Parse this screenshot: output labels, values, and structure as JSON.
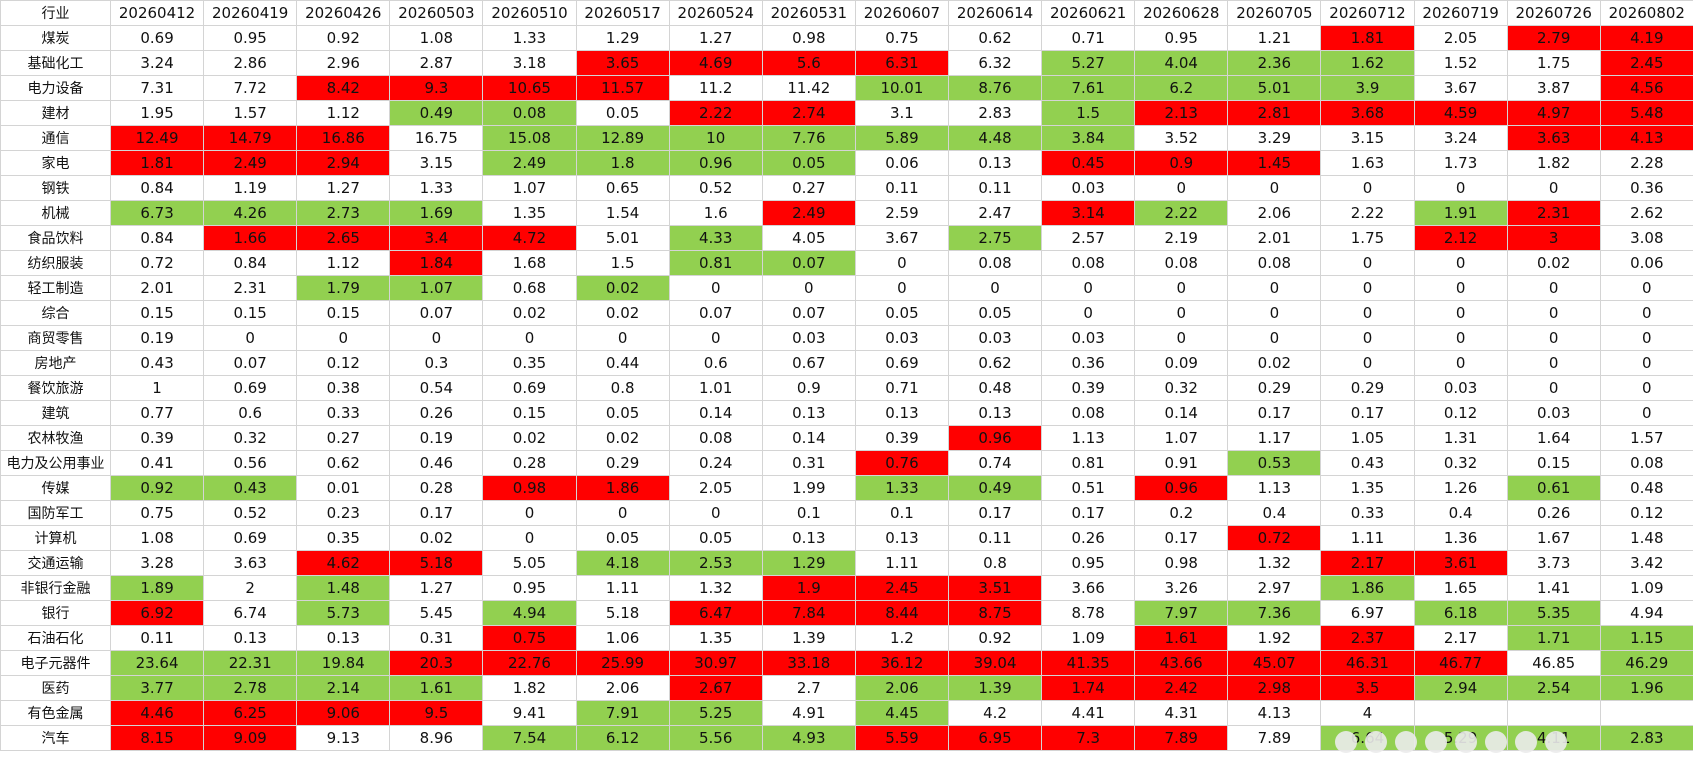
{
  "table": {
    "header_label": "行业",
    "dates": [
      "20260412",
      "20260419",
      "20260426",
      "20260503",
      "20260510",
      "20260517",
      "20260524",
      "20260531",
      "20260607",
      "20260614",
      "20260621",
      "20260628",
      "20260705",
      "20260712",
      "20260719",
      "20260726",
      "20260802"
    ],
    "rows": [
      {
        "name": "煤炭",
        "values": [
          "0.69",
          "0.95",
          "0.92",
          "1.08",
          "1.33",
          "1.29",
          "1.27",
          "0.98",
          "0.75",
          "0.62",
          "0.71",
          "0.95",
          "1.21",
          "1.81",
          "2.05",
          "2.79",
          "4.19"
        ],
        "fill": "WWWWWWWWWWWWWRWRR"
      },
      {
        "name": "基础化工",
        "values": [
          "3.24",
          "2.86",
          "2.96",
          "2.87",
          "3.18",
          "3.65",
          "4.69",
          "5.6",
          "6.31",
          "6.32",
          "5.27",
          "4.04",
          "2.36",
          "1.62",
          "1.52",
          "1.75",
          "2.45"
        ],
        "fill": "WWWWWRRRRWGGGGWWR"
      },
      {
        "name": "电力设备",
        "values": [
          "7.31",
          "7.72",
          "8.42",
          "9.3",
          "10.65",
          "11.57",
          "11.2",
          "11.42",
          "10.01",
          "8.76",
          "7.61",
          "6.2",
          "5.01",
          "3.9",
          "3.67",
          "3.87",
          "4.56"
        ],
        "fill": "WWRRRRWWGGGGGGWWR"
      },
      {
        "name": "建材",
        "values": [
          "1.95",
          "1.57",
          "1.12",
          "0.49",
          "0.08",
          "0.05",
          "2.22",
          "2.74",
          "3.1",
          "2.83",
          "1.5",
          "2.13",
          "2.81",
          "3.68",
          "4.59",
          "4.97",
          "5.48"
        ],
        "fill": "WWWGGWRRWWGRRRRRR"
      },
      {
        "name": "通信",
        "values": [
          "12.49",
          "14.79",
          "16.86",
          "16.75",
          "15.08",
          "12.89",
          "10",
          "7.76",
          "5.89",
          "4.48",
          "3.84",
          "3.52",
          "3.29",
          "3.15",
          "3.24",
          "3.63",
          "4.13"
        ],
        "fill": "RRRWGGGGGGGWWWWRR"
      },
      {
        "name": "家电",
        "values": [
          "1.81",
          "2.49",
          "2.94",
          "3.15",
          "2.49",
          "1.8",
          "0.96",
          "0.05",
          "0.06",
          "0.13",
          "0.45",
          "0.9",
          "1.45",
          "1.63",
          "1.73",
          "1.82",
          "2.28"
        ],
        "fill": "RRRWGGGGWWRRRWWWW"
      },
      {
        "name": "钢铁",
        "values": [
          "0.84",
          "1.19",
          "1.27",
          "1.33",
          "1.07",
          "0.65",
          "0.52",
          "0.27",
          "0.11",
          "0.11",
          "0.03",
          "0",
          "0",
          "0",
          "0",
          "0",
          "0.36"
        ],
        "fill": "WWWWWWWWWWWWWWWWW"
      },
      {
        "name": "机械",
        "values": [
          "6.73",
          "4.26",
          "2.73",
          "1.69",
          "1.35",
          "1.54",
          "1.6",
          "2.49",
          "2.59",
          "2.47",
          "3.14",
          "2.22",
          "2.06",
          "2.22",
          "1.91",
          "2.31",
          "2.62"
        ],
        "fill": "GGGGWWWRWWRGWWGRW"
      },
      {
        "name": "食品饮料",
        "values": [
          "0.84",
          "1.66",
          "2.65",
          "3.4",
          "4.72",
          "5.01",
          "4.33",
          "4.05",
          "3.67",
          "2.75",
          "2.57",
          "2.19",
          "2.01",
          "1.75",
          "2.12",
          "3",
          "3.08"
        ],
        "fill": "WRRRRWGWWGWWWWRRW"
      },
      {
        "name": "纺织服装",
        "values": [
          "0.72",
          "0.84",
          "1.12",
          "1.84",
          "1.68",
          "1.5",
          "0.81",
          "0.07",
          "0",
          "0.08",
          "0.08",
          "0.08",
          "0.08",
          "0",
          "0",
          "0.02",
          "0.06"
        ],
        "fill": "WWWRWWGGWWWWWWWWW"
      },
      {
        "name": "轻工制造",
        "values": [
          "2.01",
          "2.31",
          "1.79",
          "1.07",
          "0.68",
          "0.02",
          "0",
          "0",
          "0",
          "0",
          "0",
          "0",
          "0",
          "0",
          "0",
          "0",
          "0"
        ],
        "fill": "WWGGWGWWWWWWWWWWW"
      },
      {
        "name": "综合",
        "values": [
          "0.15",
          "0.15",
          "0.15",
          "0.07",
          "0.02",
          "0.02",
          "0.07",
          "0.07",
          "0.05",
          "0.05",
          "0",
          "0",
          "0",
          "0",
          "0",
          "0",
          "0"
        ],
        "fill": "WWWWWWWWWWWWWWWWW"
      },
      {
        "name": "商贸零售",
        "values": [
          "0.19",
          "0",
          "0",
          "0",
          "0",
          "0",
          "0",
          "0.03",
          "0.03",
          "0.03",
          "0.03",
          "0",
          "0",
          "0",
          "0",
          "0",
          "0"
        ],
        "fill": "WWWWWWWWWWWWWWWWW"
      },
      {
        "name": "房地产",
        "values": [
          "0.43",
          "0.07",
          "0.12",
          "0.3",
          "0.35",
          "0.44",
          "0.6",
          "0.67",
          "0.69",
          "0.62",
          "0.36",
          "0.09",
          "0.02",
          "0",
          "0",
          "0",
          "0"
        ],
        "fill": "WWWWWWWWWWWWWWWWW"
      },
      {
        "name": "餐饮旅游",
        "values": [
          "1",
          "0.69",
          "0.38",
          "0.54",
          "0.69",
          "0.8",
          "1.01",
          "0.9",
          "0.71",
          "0.48",
          "0.39",
          "0.32",
          "0.29",
          "0.29",
          "0.03",
          "0",
          "0"
        ],
        "fill": "WWWWWWWWWWWWWWWWW"
      },
      {
        "name": "建筑",
        "values": [
          "0.77",
          "0.6",
          "0.33",
          "0.26",
          "0.15",
          "0.05",
          "0.14",
          "0.13",
          "0.13",
          "0.13",
          "0.08",
          "0.14",
          "0.17",
          "0.17",
          "0.12",
          "0.03",
          "0"
        ],
        "fill": "WWWWWWWWWWWWWWWWW"
      },
      {
        "name": "农林牧渔",
        "values": [
          "0.39",
          "0.32",
          "0.27",
          "0.19",
          "0.02",
          "0.02",
          "0.08",
          "0.14",
          "0.39",
          "0.96",
          "1.13",
          "1.07",
          "1.17",
          "1.05",
          "1.31",
          "1.64",
          "1.57"
        ],
        "fill": "WWWWWWWWWRWWWWWWW"
      },
      {
        "name": "电力及公用事业",
        "values": [
          "0.41",
          "0.56",
          "0.62",
          "0.46",
          "0.28",
          "0.29",
          "0.24",
          "0.31",
          "0.76",
          "0.74",
          "0.81",
          "0.91",
          "0.53",
          "0.43",
          "0.32",
          "0.15",
          "0.08"
        ],
        "fill": "WWWWWWWWRWWWGWWWW"
      },
      {
        "name": "传媒",
        "values": [
          "0.92",
          "0.43",
          "0.01",
          "0.28",
          "0.98",
          "1.86",
          "2.05",
          "1.99",
          "1.33",
          "0.49",
          "0.51",
          "0.96",
          "1.13",
          "1.35",
          "1.26",
          "0.61",
          "0.48"
        ],
        "fill": "GGWWRRWWGGWRWWWGW"
      },
      {
        "name": "国防军工",
        "values": [
          "0.75",
          "0.52",
          "0.23",
          "0.17",
          "0",
          "0",
          "0",
          "0.1",
          "0.1",
          "0.17",
          "0.17",
          "0.2",
          "0.4",
          "0.33",
          "0.4",
          "0.26",
          "0.12"
        ],
        "fill": "WWWWWWWWWWWWWWWWW"
      },
      {
        "name": "计算机",
        "values": [
          "1.08",
          "0.69",
          "0.35",
          "0.02",
          "0",
          "0.05",
          "0.05",
          "0.13",
          "0.13",
          "0.11",
          "0.26",
          "0.17",
          "0.72",
          "1.11",
          "1.36",
          "1.67",
          "1.48"
        ],
        "fill": "WWWWWWWWWWWWRWWWW"
      },
      {
        "name": "交通运输",
        "values": [
          "3.28",
          "3.63",
          "4.62",
          "5.18",
          "5.05",
          "4.18",
          "2.53",
          "1.29",
          "1.11",
          "0.8",
          "0.95",
          "0.98",
          "1.32",
          "2.17",
          "3.61",
          "3.73",
          "3.42"
        ],
        "fill": "WWRRWGGGWWWWWRRWW"
      },
      {
        "name": "非银行金融",
        "values": [
          "1.89",
          "2",
          "1.48",
          "1.27",
          "0.95",
          "1.11",
          "1.32",
          "1.9",
          "2.45",
          "3.51",
          "3.66",
          "3.26",
          "2.97",
          "1.86",
          "1.65",
          "1.41",
          "1.09"
        ],
        "fill": "GWGWWWWRRRWWWGWWW"
      },
      {
        "name": "银行",
        "values": [
          "6.92",
          "6.74",
          "5.73",
          "5.45",
          "4.94",
          "5.18",
          "6.47",
          "7.84",
          "8.44",
          "8.75",
          "8.78",
          "7.97",
          "7.36",
          "6.97",
          "6.18",
          "5.35",
          "4.94"
        ],
        "fill": "RWGWGWRRRRWGGWGGW"
      },
      {
        "name": "石油石化",
        "values": [
          "0.11",
          "0.13",
          "0.13",
          "0.31",
          "0.75",
          "1.06",
          "1.35",
          "1.39",
          "1.2",
          "0.92",
          "1.09",
          "1.61",
          "1.92",
          "2.37",
          "2.17",
          "1.71",
          "1.15"
        ],
        "fill": "WWWWRWWWWWWRWRWGG"
      },
      {
        "name": "电子元器件",
        "values": [
          "23.64",
          "22.31",
          "19.84",
          "20.3",
          "22.76",
          "25.99",
          "30.97",
          "33.18",
          "36.12",
          "39.04",
          "41.35",
          "43.66",
          "45.07",
          "46.31",
          "46.77",
          "46.85",
          "46.29"
        ],
        "fill": "GGGRRRRRRRRRRRRWG"
      },
      {
        "name": "医药",
        "values": [
          "3.77",
          "2.78",
          "2.14",
          "1.61",
          "1.82",
          "2.06",
          "2.67",
          "2.7",
          "2.06",
          "1.39",
          "1.74",
          "2.42",
          "2.98",
          "3.5",
          "2.94",
          "2.54",
          "1.96"
        ],
        "fill": "GGGGWWRWGGRRRRGGG"
      },
      {
        "name": "有色金属",
        "values": [
          "4.46",
          "6.25",
          "9.06",
          "9.5",
          "9.41",
          "7.91",
          "5.25",
          "4.91",
          "4.45",
          "4.2",
          "4.41",
          "4.31",
          "4.13",
          "4",
          "",
          "",
          ""
        ],
        "fill": "RRRRWGGWGWWWWWWWW"
      },
      {
        "name": "汽车",
        "values": [
          "8.15",
          "9.09",
          "9.13",
          "8.96",
          "7.54",
          "6.12",
          "5.56",
          "4.93",
          "5.59",
          "6.95",
          "7.3",
          "7.89",
          "7.89",
          "6.64",
          "5.29",
          "4.11",
          "2.83"
        ],
        "fill": "RRWWGGGGRRRRWGGGG"
      }
    ]
  },
  "colors": {
    "red": "#ff0000",
    "green": "#92d050",
    "white": "#ffffff",
    "grid": "#d4d4d4"
  }
}
